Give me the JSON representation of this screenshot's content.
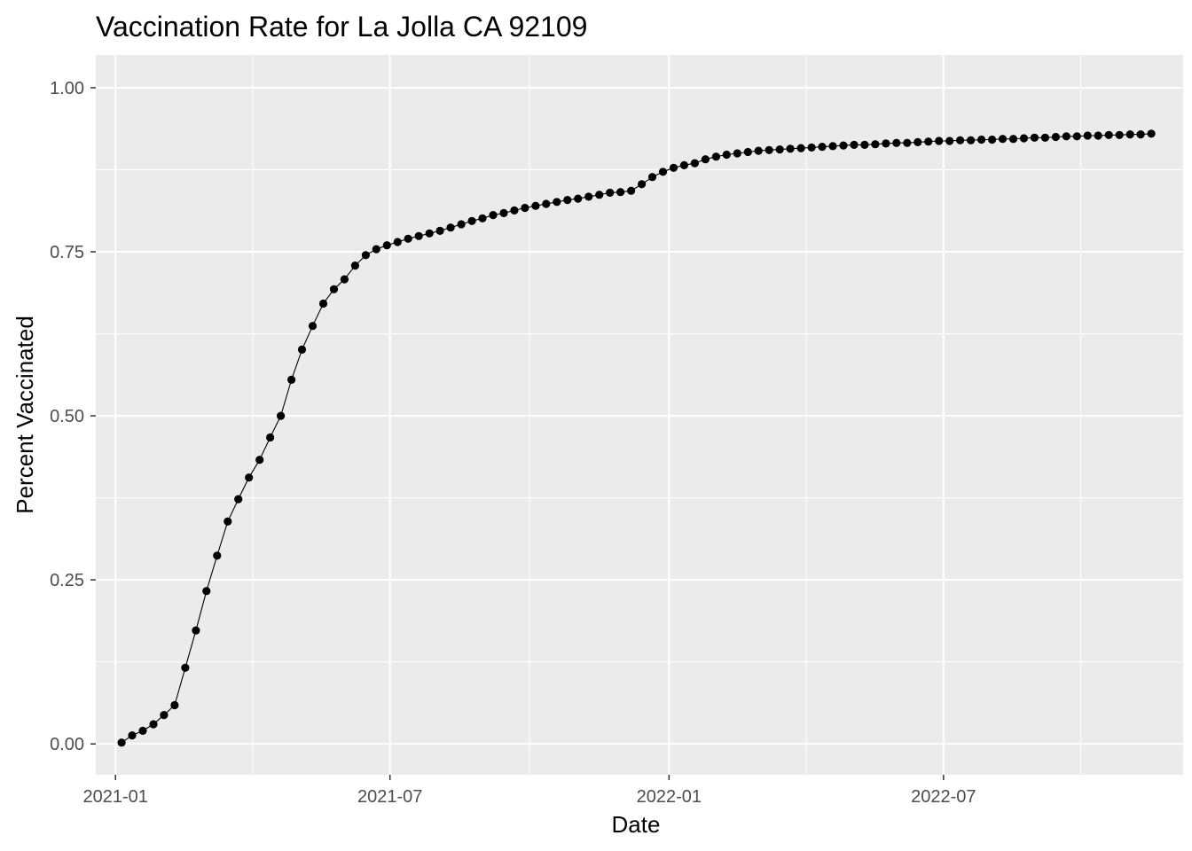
{
  "chart_data": {
    "type": "line",
    "title": "Vaccination Rate for La Jolla CA 92109",
    "xlabel": "Date",
    "ylabel": "Percent Vaccinated",
    "x_ticks": [
      "2021-01",
      "2021-07",
      "2022-01",
      "2022-07"
    ],
    "y_ticks": [
      "0.00",
      "0.25",
      "0.50",
      "0.75",
      "1.00"
    ],
    "ylim": [
      -0.047,
      1.05
    ],
    "xlim": [
      "2020-12-19",
      "2022-12-06"
    ],
    "grid": true,
    "panel_background": "#ebebeb",
    "grid_color": "#ffffff",
    "point_color": "#000000",
    "line_color": "#000000",
    "series": [
      {
        "x": [
          "2021-01-05",
          "2021-01-12",
          "2021-01-19",
          "2021-01-26",
          "2021-02-02",
          "2021-02-09",
          "2021-02-16",
          "2021-02-23",
          "2021-03-02",
          "2021-03-09",
          "2021-03-16",
          "2021-03-23",
          "2021-03-30",
          "2021-04-06",
          "2021-04-13",
          "2021-04-20",
          "2021-04-27",
          "2021-05-04",
          "2021-05-11",
          "2021-05-18",
          "2021-05-25",
          "2021-06-01",
          "2021-06-08",
          "2021-06-15",
          "2021-06-22",
          "2021-06-29",
          "2021-07-06",
          "2021-07-13",
          "2021-07-20",
          "2021-07-27",
          "2021-08-03",
          "2021-08-10",
          "2021-08-17",
          "2021-08-24",
          "2021-08-31",
          "2021-09-07",
          "2021-09-14",
          "2021-09-21",
          "2021-09-28",
          "2021-10-05",
          "2021-10-12",
          "2021-10-19",
          "2021-10-26",
          "2021-11-02",
          "2021-11-09",
          "2021-11-16",
          "2021-11-23",
          "2021-11-30",
          "2021-12-07",
          "2021-12-14",
          "2021-12-21",
          "2021-12-28",
          "2022-01-04",
          "2022-01-11",
          "2022-01-18",
          "2022-01-25",
          "2022-02-01",
          "2022-02-08",
          "2022-02-15",
          "2022-02-22",
          "2022-03-01",
          "2022-03-08",
          "2022-03-15",
          "2022-03-22",
          "2022-03-29",
          "2022-04-05",
          "2022-04-12",
          "2022-04-19",
          "2022-04-26",
          "2022-05-03",
          "2022-05-10",
          "2022-05-17",
          "2022-05-24",
          "2022-05-31",
          "2022-06-07",
          "2022-06-14",
          "2022-06-21",
          "2022-06-28",
          "2022-07-05",
          "2022-07-12",
          "2022-07-19",
          "2022-07-26",
          "2022-08-02",
          "2022-08-09",
          "2022-08-16",
          "2022-08-23",
          "2022-08-30",
          "2022-09-06",
          "2022-09-13",
          "2022-09-20",
          "2022-09-27",
          "2022-10-04",
          "2022-10-11",
          "2022-10-18",
          "2022-10-25",
          "2022-11-01",
          "2022-11-08",
          "2022-11-15"
        ],
        "y": [
          0.002,
          0.013,
          0.02,
          0.03,
          0.044,
          0.059,
          0.116,
          0.173,
          0.233,
          0.287,
          0.339,
          0.373,
          0.406,
          0.433,
          0.467,
          0.5,
          0.555,
          0.601,
          0.637,
          0.671,
          0.693,
          0.708,
          0.729,
          0.745,
          0.754,
          0.76,
          0.765,
          0.77,
          0.774,
          0.778,
          0.782,
          0.787,
          0.792,
          0.797,
          0.801,
          0.806,
          0.809,
          0.813,
          0.817,
          0.82,
          0.823,
          0.826,
          0.829,
          0.831,
          0.834,
          0.837,
          0.84,
          0.841,
          0.843,
          0.853,
          0.864,
          0.872,
          0.878,
          0.882,
          0.885,
          0.891,
          0.895,
          0.898,
          0.9,
          0.902,
          0.904,
          0.905,
          0.906,
          0.907,
          0.908,
          0.909,
          0.91,
          0.911,
          0.912,
          0.913,
          0.913,
          0.914,
          0.915,
          0.916,
          0.916,
          0.917,
          0.918,
          0.919,
          0.919,
          0.92,
          0.92,
          0.921,
          0.921,
          0.922,
          0.922,
          0.923,
          0.924,
          0.924,
          0.925,
          0.926,
          0.926,
          0.927,
          0.927,
          0.928,
          0.928,
          0.929,
          0.929,
          0.93
        ]
      }
    ]
  }
}
